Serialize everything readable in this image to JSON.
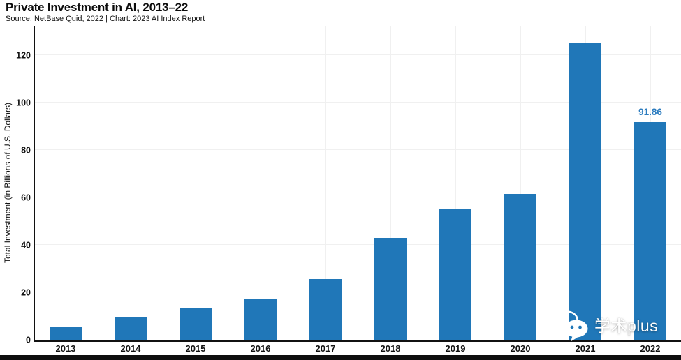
{
  "chart_data": {
    "type": "bar",
    "title": "Private Investment in AI, 2013–22",
    "subtitle": "Source: NetBase Quid, 2022 | Chart: 2023 AI Index Report",
    "ylabel": "Total Investment (in Billions of U.S. Dollars)",
    "xlabel": "",
    "categories": [
      "2013",
      "2014",
      "2015",
      "2016",
      "2017",
      "2018",
      "2019",
      "2020",
      "2021",
      "2022"
    ],
    "values": [
      5.3,
      9.7,
      13.6,
      17.2,
      25.5,
      43.0,
      55.1,
      61.6,
      125.4,
      91.86
    ],
    "bar_labels": [
      {
        "category": "2022",
        "text": "91.86"
      }
    ],
    "yticks": [
      0,
      20,
      40,
      60,
      80,
      100,
      120
    ],
    "ylim": [
      0,
      132.4
    ],
    "grid": true,
    "legend": "none",
    "colors": {
      "bar": "#2077b8",
      "bar_value_label": "#2c7cbf",
      "grid": "#f0f0f0",
      "axis": "#111111",
      "text": "#111111",
      "watermark": "#ffffff",
      "bottom_divider": "#0e0e0e"
    }
  },
  "watermark": {
    "text": "学术plus"
  },
  "icons": {
    "watermark_icon": "wechat-icon"
  }
}
